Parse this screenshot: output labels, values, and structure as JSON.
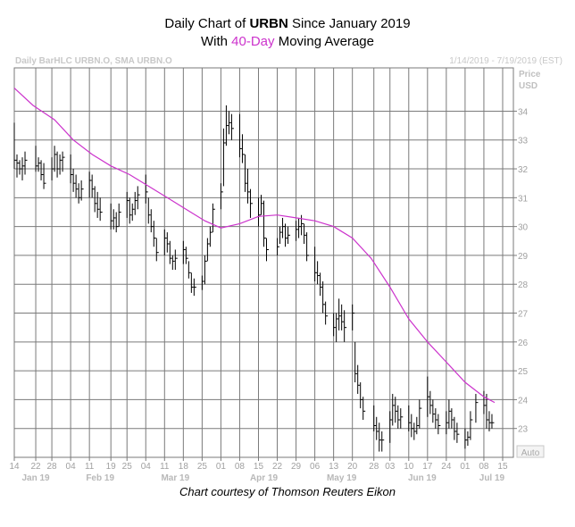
{
  "title": {
    "line1_prefix": "Daily Chart of ",
    "ticker": "URBN",
    "line1_suffix": " Since January 2019",
    "line2_prefix": "With ",
    "ma_highlight": "40-Day",
    "line2_suffix": " Moving Average",
    "highlight_color": "#cc33cc"
  },
  "header": {
    "left": "Daily BarHLC URBN.O, SMA URBN.O",
    "right": "1/14/2019 - 7/19/2019 (EST)"
  },
  "axis": {
    "price_label": "Price",
    "unit_label": "USD",
    "auto_label": "Auto"
  },
  "credit": "Chart courtesy of Thomson Reuters Eikon",
  "chart_data": {
    "type": "bar-hlc",
    "x_range": [
      "2019-01-14",
      "2019-07-19"
    ],
    "ylim": [
      22,
      35.5
    ],
    "y_ticks": [
      23,
      24,
      25,
      26,
      27,
      28,
      29,
      30,
      31,
      32,
      33,
      34
    ],
    "grid": true,
    "x_ticks": [
      {
        "label": "14",
        "date": "2019-01-14"
      },
      {
        "label": "22",
        "date": "2019-01-22"
      },
      {
        "label": "28",
        "date": "2019-01-28"
      },
      {
        "label": "04",
        "date": "2019-02-04"
      },
      {
        "label": "11",
        "date": "2019-02-11"
      },
      {
        "label": "19",
        "date": "2019-02-19"
      },
      {
        "label": "25",
        "date": "2019-02-25"
      },
      {
        "label": "04",
        "date": "2019-03-04"
      },
      {
        "label": "11",
        "date": "2019-03-11"
      },
      {
        "label": "18",
        "date": "2019-03-18"
      },
      {
        "label": "25",
        "date": "2019-03-25"
      },
      {
        "label": "01",
        "date": "2019-04-01"
      },
      {
        "label": "08",
        "date": "2019-04-08"
      },
      {
        "label": "15",
        "date": "2019-04-15"
      },
      {
        "label": "22",
        "date": "2019-04-22"
      },
      {
        "label": "29",
        "date": "2019-04-29"
      },
      {
        "label": "06",
        "date": "2019-05-06"
      },
      {
        "label": "13",
        "date": "2019-05-13"
      },
      {
        "label": "20",
        "date": "2019-05-20"
      },
      {
        "label": "28",
        "date": "2019-05-28"
      },
      {
        "label": "03",
        "date": "2019-06-03"
      },
      {
        "label": "10",
        "date": "2019-06-10"
      },
      {
        "label": "17",
        "date": "2019-06-17"
      },
      {
        "label": "24",
        "date": "2019-06-24"
      },
      {
        "label": "01",
        "date": "2019-07-01"
      },
      {
        "label": "08",
        "date": "2019-07-08"
      },
      {
        "label": "15",
        "date": "2019-07-15"
      }
    ],
    "months": [
      {
        "label": "Jan 19",
        "date": "2019-01-22"
      },
      {
        "label": "Feb 19",
        "date": "2019-02-15"
      },
      {
        "label": "Mar 19",
        "date": "2019-03-15"
      },
      {
        "label": "Apr 19",
        "date": "2019-04-17"
      },
      {
        "label": "May 19",
        "date": "2019-05-16"
      },
      {
        "label": "Jun 19",
        "date": "2019-06-15"
      },
      {
        "label": "Jul 19",
        "date": "2019-07-11"
      }
    ],
    "bars": [
      {
        "date": "2019-01-14",
        "high": 33.6,
        "low": 32.0,
        "close": 32.3
      },
      {
        "date": "2019-01-15",
        "high": 32.5,
        "low": 31.7,
        "close": 32.2
      },
      {
        "date": "2019-01-16",
        "high": 32.3,
        "low": 31.8,
        "close": 32.0
      },
      {
        "date": "2019-01-17",
        "high": 32.4,
        "low": 31.6,
        "close": 32.1
      },
      {
        "date": "2019-01-18",
        "high": 32.6,
        "low": 31.8,
        "close": 32.3
      },
      {
        "date": "2019-01-22",
        "high": 32.8,
        "low": 31.9,
        "close": 32.1
      },
      {
        "date": "2019-01-23",
        "high": 32.4,
        "low": 31.9,
        "close": 32.2
      },
      {
        "date": "2019-01-24",
        "high": 32.3,
        "low": 31.6,
        "close": 31.8
      },
      {
        "date": "2019-01-25",
        "high": 32.2,
        "low": 31.3,
        "close": 31.5
      },
      {
        "date": "2019-01-28",
        "high": 32.4,
        "low": 31.6,
        "close": 32.0
      },
      {
        "date": "2019-01-29",
        "high": 32.8,
        "low": 31.9,
        "close": 32.5
      },
      {
        "date": "2019-01-30",
        "high": 32.6,
        "low": 31.7,
        "close": 32.0
      },
      {
        "date": "2019-01-31",
        "high": 32.5,
        "low": 31.8,
        "close": 32.3
      },
      {
        "date": "2019-02-01",
        "high": 32.6,
        "low": 31.9,
        "close": 32.4
      },
      {
        "date": "2019-02-04",
        "high": 32.5,
        "low": 31.5,
        "close": 31.8
      },
      {
        "date": "2019-02-05",
        "high": 32.0,
        "low": 31.2,
        "close": 31.5
      },
      {
        "date": "2019-02-06",
        "high": 31.8,
        "low": 31.0,
        "close": 31.3
      },
      {
        "date": "2019-02-07",
        "high": 31.5,
        "low": 30.8,
        "close": 31.0
      },
      {
        "date": "2019-02-08",
        "high": 31.6,
        "low": 30.9,
        "close": 31.3
      },
      {
        "date": "2019-02-11",
        "high": 31.9,
        "low": 31.0,
        "close": 31.6
      },
      {
        "date": "2019-02-12",
        "high": 31.8,
        "low": 31.0,
        "close": 31.3
      },
      {
        "date": "2019-02-13",
        "high": 31.4,
        "low": 30.5,
        "close": 30.8
      },
      {
        "date": "2019-02-14",
        "high": 31.2,
        "low": 30.3,
        "close": 30.6
      },
      {
        "date": "2019-02-15",
        "high": 31.0,
        "low": 30.2,
        "close": 30.5
      },
      {
        "date": "2019-02-19",
        "high": 30.8,
        "low": 29.9,
        "close": 30.2
      },
      {
        "date": "2019-02-20",
        "high": 30.6,
        "low": 29.9,
        "close": 30.3
      },
      {
        "date": "2019-02-21",
        "high": 30.5,
        "low": 29.8,
        "close": 30.0
      },
      {
        "date": "2019-02-22",
        "high": 30.8,
        "low": 30.0,
        "close": 30.5
      },
      {
        "date": "2019-02-25",
        "high": 31.2,
        "low": 30.3,
        "close": 30.9
      },
      {
        "date": "2019-02-26",
        "high": 31.0,
        "low": 30.1,
        "close": 30.4
      },
      {
        "date": "2019-02-27",
        "high": 30.8,
        "low": 30.2,
        "close": 30.6
      },
      {
        "date": "2019-02-28",
        "high": 31.2,
        "low": 30.4,
        "close": 30.9
      },
      {
        "date": "2019-03-01",
        "high": 31.4,
        "low": 30.6,
        "close": 31.1
      },
      {
        "date": "2019-03-04",
        "high": 31.8,
        "low": 30.8,
        "close": 31.2
      },
      {
        "date": "2019-03-05",
        "high": 31.0,
        "low": 30.1,
        "close": 30.4
      },
      {
        "date": "2019-03-06",
        "high": 30.6,
        "low": 29.8,
        "close": 30.0
      },
      {
        "date": "2019-03-07",
        "high": 30.2,
        "low": 29.3,
        "close": 29.6
      },
      {
        "date": "2019-03-08",
        "high": 29.6,
        "low": 28.8,
        "close": 29.1
      },
      {
        "date": "2019-03-11",
        "high": 29.9,
        "low": 29.0,
        "close": 29.6
      },
      {
        "date": "2019-03-12",
        "high": 29.8,
        "low": 29.1,
        "close": 29.4
      },
      {
        "date": "2019-03-13",
        "high": 29.5,
        "low": 28.7,
        "close": 28.9
      },
      {
        "date": "2019-03-14",
        "high": 29.0,
        "low": 28.5,
        "close": 28.8
      },
      {
        "date": "2019-03-15",
        "high": 29.2,
        "low": 28.5,
        "close": 28.9
      },
      {
        "date": "2019-03-18",
        "high": 29.5,
        "low": 28.7,
        "close": 29.2
      },
      {
        "date": "2019-03-19",
        "high": 29.3,
        "low": 28.7,
        "close": 28.9
      },
      {
        "date": "2019-03-20",
        "high": 28.8,
        "low": 28.2,
        "close": 28.4
      },
      {
        "date": "2019-03-21",
        "high": 28.4,
        "low": 27.7,
        "close": 27.9
      },
      {
        "date": "2019-03-22",
        "high": 28.2,
        "low": 27.6,
        "close": 27.9
      },
      {
        "date": "2019-03-25",
        "high": 28.3,
        "low": 27.8,
        "close": 28.1
      },
      {
        "date": "2019-03-26",
        "high": 29.0,
        "low": 28.0,
        "close": 28.8
      },
      {
        "date": "2019-03-27",
        "high": 29.6,
        "low": 28.8,
        "close": 29.4
      },
      {
        "date": "2019-03-28",
        "high": 30.0,
        "low": 29.3,
        "close": 29.8
      },
      {
        "date": "2019-03-29",
        "high": 30.8,
        "low": 29.8,
        "close": 30.6
      },
      {
        "date": "2019-04-01",
        "high": 31.5,
        "low": 30.6,
        "close": 31.2
      },
      {
        "date": "2019-04-02",
        "high": 33.4,
        "low": 31.4,
        "close": 32.9
      },
      {
        "date": "2019-04-03",
        "high": 34.2,
        "low": 32.8,
        "close": 33.5
      },
      {
        "date": "2019-04-04",
        "high": 34.0,
        "low": 33.2,
        "close": 33.6
      },
      {
        "date": "2019-04-05",
        "high": 33.9,
        "low": 33.0,
        "close": 33.4
      },
      {
        "date": "2019-04-08",
        "high": 33.9,
        "low": 32.4,
        "close": 32.7
      },
      {
        "date": "2019-04-09",
        "high": 33.2,
        "low": 32.2,
        "close": 32.5
      },
      {
        "date": "2019-04-10",
        "high": 32.5,
        "low": 31.2,
        "close": 31.5
      },
      {
        "date": "2019-04-11",
        "high": 32.0,
        "low": 30.8,
        "close": 31.2
      },
      {
        "date": "2019-04-12",
        "high": 31.3,
        "low": 30.3,
        "close": 30.8
      },
      {
        "date": "2019-04-15",
        "high": 31.0,
        "low": 30.0,
        "close": 30.4
      },
      {
        "date": "2019-04-16",
        "high": 31.1,
        "low": 30.4,
        "close": 30.8
      },
      {
        "date": "2019-04-17",
        "high": 30.9,
        "low": 29.3,
        "close": 29.6
      },
      {
        "date": "2019-04-18",
        "high": 29.6,
        "low": 28.8,
        "close": 29.2
      },
      {
        "date": "2019-04-22",
        "high": 29.6,
        "low": 29.0,
        "close": 29.3
      },
      {
        "date": "2019-04-23",
        "high": 30.0,
        "low": 29.4,
        "close": 29.8
      },
      {
        "date": "2019-04-24",
        "high": 30.3,
        "low": 29.6,
        "close": 30.0
      },
      {
        "date": "2019-04-25",
        "high": 30.1,
        "low": 29.3,
        "close": 29.6
      },
      {
        "date": "2019-04-26",
        "high": 30.0,
        "low": 29.4,
        "close": 29.7
      },
      {
        "date": "2019-04-29",
        "high": 30.2,
        "low": 29.5,
        "close": 29.9
      },
      {
        "date": "2019-04-30",
        "high": 30.3,
        "low": 29.6,
        "close": 30.0
      },
      {
        "date": "2019-05-01",
        "high": 30.4,
        "low": 29.7,
        "close": 30.1
      },
      {
        "date": "2019-05-02",
        "high": 30.1,
        "low": 29.4,
        "close": 29.7
      },
      {
        "date": "2019-05-03",
        "high": 29.8,
        "low": 28.8,
        "close": 29.0
      },
      {
        "date": "2019-05-06",
        "high": 29.3,
        "low": 28.1,
        "close": 28.4
      },
      {
        "date": "2019-05-07",
        "high": 28.8,
        "low": 28.0,
        "close": 28.3
      },
      {
        "date": "2019-05-08",
        "high": 28.4,
        "low": 27.6,
        "close": 27.9
      },
      {
        "date": "2019-05-09",
        "high": 28.1,
        "low": 27.0,
        "close": 27.3
      },
      {
        "date": "2019-05-10",
        "high": 27.4,
        "low": 26.6,
        "close": 26.9
      },
      {
        "date": "2019-05-13",
        "high": 27.0,
        "low": 26.2,
        "close": 26.5
      },
      {
        "date": "2019-05-14",
        "high": 27.0,
        "low": 26.0,
        "close": 26.8
      },
      {
        "date": "2019-05-15",
        "high": 27.5,
        "low": 26.4,
        "close": 26.9
      },
      {
        "date": "2019-05-16",
        "high": 27.3,
        "low": 26.4,
        "close": 26.7
      },
      {
        "date": "2019-05-17",
        "high": 27.1,
        "low": 26.0,
        "close": 26.5
      },
      {
        "date": "2019-05-20",
        "high": 27.3,
        "low": 26.4,
        "close": 27.0
      },
      {
        "date": "2019-05-21",
        "high": 26.0,
        "low": 24.6,
        "close": 24.9
      },
      {
        "date": "2019-05-22",
        "high": 25.2,
        "low": 24.2,
        "close": 24.5
      },
      {
        "date": "2019-05-23",
        "high": 24.6,
        "low": 23.7,
        "close": 24.0
      },
      {
        "date": "2019-05-24",
        "high": 24.1,
        "low": 23.3,
        "close": 23.6
      },
      {
        "date": "2019-05-28",
        "high": 23.8,
        "low": 22.9,
        "close": 23.1
      },
      {
        "date": "2019-05-29",
        "high": 23.4,
        "low": 22.6,
        "close": 22.9
      },
      {
        "date": "2019-05-30",
        "high": 23.2,
        "low": 22.2,
        "close": 22.6
      },
      {
        "date": "2019-05-31",
        "high": 22.9,
        "low": 22.2,
        "close": 22.6
      },
      {
        "date": "2019-06-03",
        "high": 23.6,
        "low": 22.5,
        "close": 23.3
      },
      {
        "date": "2019-06-04",
        "high": 24.2,
        "low": 23.1,
        "close": 23.8
      },
      {
        "date": "2019-06-05",
        "high": 24.1,
        "low": 23.2,
        "close": 23.6
      },
      {
        "date": "2019-06-06",
        "high": 23.8,
        "low": 23.0,
        "close": 23.3
      },
      {
        "date": "2019-06-07",
        "high": 23.7,
        "low": 23.0,
        "close": 23.4
      },
      {
        "date": "2019-06-10",
        "high": 23.8,
        "low": 22.9,
        "close": 23.2
      },
      {
        "date": "2019-06-11",
        "high": 23.5,
        "low": 22.7,
        "close": 23.0
      },
      {
        "date": "2019-06-12",
        "high": 23.2,
        "low": 22.6,
        "close": 22.9
      },
      {
        "date": "2019-06-13",
        "high": 23.4,
        "low": 22.8,
        "close": 23.1
      },
      {
        "date": "2019-06-14",
        "high": 24.0,
        "low": 23.0,
        "close": 23.7
      },
      {
        "date": "2019-06-17",
        "high": 24.8,
        "low": 23.4,
        "close": 24.1
      },
      {
        "date": "2019-06-18",
        "high": 24.3,
        "low": 23.5,
        "close": 23.8
      },
      {
        "date": "2019-06-19",
        "high": 24.0,
        "low": 23.2,
        "close": 23.5
      },
      {
        "date": "2019-06-20",
        "high": 23.7,
        "low": 23.0,
        "close": 23.3
      },
      {
        "date": "2019-06-21",
        "high": 23.5,
        "low": 22.8,
        "close": 23.1
      },
      {
        "date": "2019-06-24",
        "high": 23.6,
        "low": 22.8,
        "close": 23.2
      },
      {
        "date": "2019-06-25",
        "high": 24.0,
        "low": 23.0,
        "close": 23.6
      },
      {
        "date": "2019-06-26",
        "high": 23.7,
        "low": 23.0,
        "close": 23.3
      },
      {
        "date": "2019-06-27",
        "high": 23.4,
        "low": 22.6,
        "close": 22.9
      },
      {
        "date": "2019-06-28",
        "high": 23.2,
        "low": 22.5,
        "close": 22.8
      },
      {
        "date": "2019-07-01",
        "high": 23.0,
        "low": 22.3,
        "close": 22.6
      },
      {
        "date": "2019-07-02",
        "high": 22.9,
        "low": 22.4,
        "close": 22.7
      },
      {
        "date": "2019-07-03",
        "high": 23.6,
        "low": 22.6,
        "close": 23.3
      },
      {
        "date": "2019-07-05",
        "high": 24.2,
        "low": 23.2,
        "close": 23.9
      },
      {
        "date": "2019-07-08",
        "high": 24.3,
        "low": 23.5,
        "close": 23.8
      },
      {
        "date": "2019-07-09",
        "high": 24.2,
        "low": 23.0,
        "close": 23.3
      },
      {
        "date": "2019-07-10",
        "high": 23.6,
        "low": 22.9,
        "close": 23.2
      },
      {
        "date": "2019-07-11",
        "high": 23.5,
        "low": 23.0,
        "close": 23.2
      }
    ],
    "sma40": [
      {
        "date": "2019-01-14",
        "value": 34.8
      },
      {
        "date": "2019-01-21",
        "value": 34.2
      },
      {
        "date": "2019-01-29",
        "value": 33.7
      },
      {
        "date": "2019-02-05",
        "value": 33.0
      },
      {
        "date": "2019-02-12",
        "value": 32.5
      },
      {
        "date": "2019-02-19",
        "value": 32.1
      },
      {
        "date": "2019-02-26",
        "value": 31.8
      },
      {
        "date": "2019-03-05",
        "value": 31.4
      },
      {
        "date": "2019-03-12",
        "value": 31.0
      },
      {
        "date": "2019-03-19",
        "value": 30.6
      },
      {
        "date": "2019-03-26",
        "value": 30.2
      },
      {
        "date": "2019-04-01",
        "value": 29.95
      },
      {
        "date": "2019-04-08",
        "value": 30.1
      },
      {
        "date": "2019-04-15",
        "value": 30.35
      },
      {
        "date": "2019-04-22",
        "value": 30.4
      },
      {
        "date": "2019-04-29",
        "value": 30.3
      },
      {
        "date": "2019-05-06",
        "value": 30.2
      },
      {
        "date": "2019-05-13",
        "value": 30.0
      },
      {
        "date": "2019-05-20",
        "value": 29.6
      },
      {
        "date": "2019-05-27",
        "value": 28.9
      },
      {
        "date": "2019-06-03",
        "value": 27.9
      },
      {
        "date": "2019-06-10",
        "value": 26.8
      },
      {
        "date": "2019-06-17",
        "value": 26.0
      },
      {
        "date": "2019-06-24",
        "value": 25.3
      },
      {
        "date": "2019-07-01",
        "value": 24.6
      },
      {
        "date": "2019-07-08",
        "value": 24.1
      },
      {
        "date": "2019-07-12",
        "value": 23.9
      }
    ],
    "sma_color": "#cc33cc",
    "bar_color": "#000000"
  }
}
